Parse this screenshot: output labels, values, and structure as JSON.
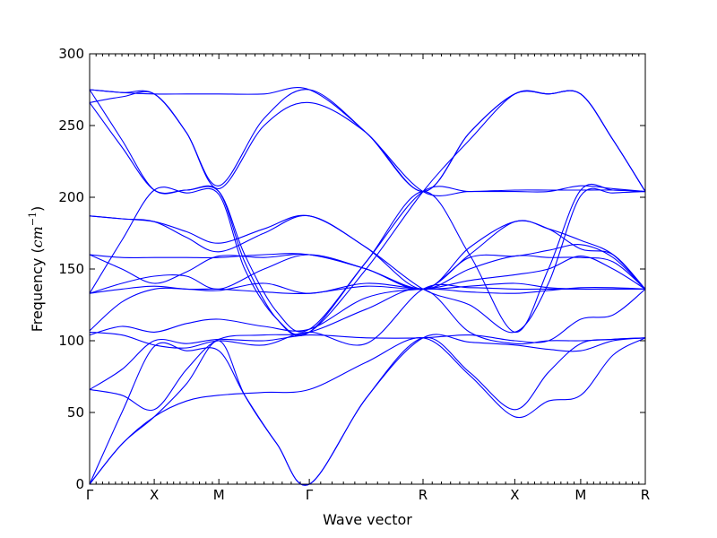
{
  "chart_data": {
    "type": "line",
    "title": "",
    "xlabel": "Wave vector",
    "ylabel": "Frequency",
    "ylabel_unit_base": "cm",
    "ylabel_unit_exp": "−1",
    "ylim": [
      0,
      300
    ],
    "yticks": [
      0,
      50,
      100,
      150,
      200,
      250,
      300
    ],
    "xlim": [
      0,
      4.3
    ],
    "high_symmetry_points": [
      {
        "label": "Γ",
        "x": 0
      },
      {
        "label": "X",
        "x": 0.5
      },
      {
        "label": "M",
        "x": 1.0
      },
      {
        "label": "Γ",
        "x": 1.7
      },
      {
        "label": "R",
        "x": 2.58
      },
      {
        "label": "X",
        "x": 3.29
      },
      {
        "label": "M",
        "x": 3.8
      },
      {
        "label": "R",
        "x": 4.3
      }
    ],
    "minor_ticks_per_segment": 9,
    "line_color": "#0000ff",
    "series": [
      {
        "values": [
          [
            0,
            0
          ],
          [
            0.25,
            28
          ],
          [
            0.5,
            47
          ],
          [
            0.75,
            58
          ],
          [
            1.0,
            62
          ],
          [
            1.35,
            64
          ],
          [
            1.7,
            66
          ],
          [
            2.14,
            85
          ],
          [
            2.58,
            102
          ],
          [
            2.94,
            76
          ],
          [
            3.29,
            47
          ],
          [
            3.55,
            58
          ],
          [
            3.8,
            62
          ],
          [
            4.05,
            90
          ],
          [
            4.3,
            102
          ]
        ]
      },
      {
        "values": [
          [
            0,
            0
          ],
          [
            0.25,
            28
          ],
          [
            0.5,
            47
          ],
          [
            0.75,
            70
          ],
          [
            1.0,
            100
          ],
          [
            1.2,
            62
          ],
          [
            1.45,
            28
          ],
          [
            1.7,
            0
          ],
          [
            2.14,
            60
          ],
          [
            2.58,
            102
          ],
          [
            2.94,
            78
          ],
          [
            3.29,
            52
          ],
          [
            3.55,
            78
          ],
          [
            3.8,
            98
          ],
          [
            4.05,
            101
          ],
          [
            4.3,
            102
          ]
        ]
      },
      {
        "values": [
          [
            0,
            0
          ],
          [
            0.25,
            50
          ],
          [
            0.5,
            96
          ],
          [
            0.75,
            93
          ],
          [
            1.0,
            93
          ],
          [
            1.2,
            62
          ],
          [
            1.45,
            28
          ],
          [
            1.7,
            0
          ],
          [
            2.14,
            60
          ],
          [
            2.58,
            102
          ],
          [
            2.94,
            99
          ],
          [
            3.29,
            97
          ],
          [
            3.55,
            94
          ],
          [
            3.8,
            93
          ],
          [
            4.05,
            100
          ],
          [
            4.3,
            102
          ]
        ]
      },
      {
        "values": [
          [
            0,
            66
          ],
          [
            0.25,
            62
          ],
          [
            0.5,
            52
          ],
          [
            0.75,
            80
          ],
          [
            1.0,
            101
          ],
          [
            1.35,
            104
          ],
          [
            1.7,
            106
          ],
          [
            2.14,
            122
          ],
          [
            2.58,
            136
          ],
          [
            2.94,
            106
          ],
          [
            3.29,
            98
          ],
          [
            3.55,
            100
          ],
          [
            3.8,
            100
          ],
          [
            4.05,
            101
          ],
          [
            4.3,
            102
          ]
        ]
      },
      {
        "values": [
          [
            0,
            66
          ],
          [
            0.25,
            80
          ],
          [
            0.5,
            100
          ],
          [
            0.75,
            98
          ],
          [
            1.0,
            101
          ],
          [
            1.35,
            100
          ],
          [
            1.7,
            104
          ],
          [
            2.14,
            102
          ],
          [
            2.58,
            102
          ],
          [
            2.94,
            104
          ],
          [
            3.29,
            100
          ],
          [
            3.55,
            100
          ],
          [
            3.8,
            115
          ],
          [
            4.05,
            118
          ],
          [
            4.3,
            136
          ]
        ]
      },
      {
        "values": [
          [
            0,
            104
          ],
          [
            0.25,
            110
          ],
          [
            0.5,
            106
          ],
          [
            0.75,
            112
          ],
          [
            1.0,
            115
          ],
          [
            1.35,
            110
          ],
          [
            1.7,
            108
          ],
          [
            2.14,
            130
          ],
          [
            2.58,
            136
          ],
          [
            2.94,
            134
          ],
          [
            3.29,
            133
          ],
          [
            3.55,
            135
          ],
          [
            3.8,
            137
          ],
          [
            4.05,
            137
          ],
          [
            4.3,
            136
          ]
        ]
      },
      {
        "values": [
          [
            0,
            106
          ],
          [
            0.25,
            104
          ],
          [
            0.5,
            97
          ],
          [
            0.75,
            95
          ],
          [
            1.0,
            100
          ],
          [
            1.35,
            97
          ],
          [
            1.7,
            106
          ],
          [
            2.14,
            98
          ],
          [
            2.58,
            136
          ],
          [
            2.94,
            137
          ],
          [
            3.29,
            136
          ],
          [
            3.55,
            136
          ],
          [
            3.8,
            136
          ],
          [
            4.05,
            136
          ],
          [
            4.3,
            136
          ]
        ]
      },
      {
        "values": [
          [
            0,
            107
          ],
          [
            0.25,
            127
          ],
          [
            0.5,
            136
          ],
          [
            0.75,
            136
          ],
          [
            1.0,
            135
          ],
          [
            1.35,
            140
          ],
          [
            1.7,
            133
          ],
          [
            2.14,
            140
          ],
          [
            2.58,
            136
          ],
          [
            2.94,
            138
          ],
          [
            3.29,
            140
          ],
          [
            3.55,
            137
          ],
          [
            3.8,
            136
          ],
          [
            4.05,
            136
          ],
          [
            4.3,
            136
          ]
        ]
      },
      {
        "values": [
          [
            0,
            133
          ],
          [
            0.25,
            136
          ],
          [
            0.5,
            138
          ],
          [
            0.75,
            136
          ],
          [
            1.0,
            136
          ],
          [
            1.35,
            134
          ],
          [
            1.7,
            133
          ],
          [
            2.14,
            138
          ],
          [
            2.58,
            136
          ],
          [
            2.94,
            142
          ],
          [
            3.29,
            146
          ],
          [
            3.55,
            150
          ],
          [
            3.8,
            159
          ],
          [
            4.05,
            150
          ],
          [
            4.3,
            136
          ]
        ]
      },
      {
        "values": [
          [
            0,
            133
          ],
          [
            0.25,
            140
          ],
          [
            0.5,
            145
          ],
          [
            0.75,
            145
          ],
          [
            1.0,
            136
          ],
          [
            1.35,
            150
          ],
          [
            1.7,
            160
          ],
          [
            2.14,
            150
          ],
          [
            2.58,
            136
          ],
          [
            2.94,
            160
          ],
          [
            3.29,
            183
          ],
          [
            3.55,
            178
          ],
          [
            3.8,
            170
          ],
          [
            4.05,
            160
          ],
          [
            4.3,
            136
          ]
        ]
      },
      {
        "values": [
          [
            0,
            160
          ],
          [
            0.25,
            158
          ],
          [
            0.5,
            158
          ],
          [
            0.75,
            158
          ],
          [
            1.0,
            158
          ],
          [
            1.35,
            160
          ],
          [
            1.7,
            160
          ],
          [
            2.14,
            150
          ],
          [
            2.58,
            136
          ],
          [
            2.94,
            150
          ],
          [
            3.29,
            159
          ],
          [
            3.55,
            158
          ],
          [
            3.8,
            158
          ],
          [
            4.05,
            155
          ],
          [
            4.3,
            136
          ]
        ]
      },
      {
        "values": [
          [
            0,
            160
          ],
          [
            0.25,
            150
          ],
          [
            0.5,
            140
          ],
          [
            0.75,
            148
          ],
          [
            1.0,
            159
          ],
          [
            1.35,
            158
          ],
          [
            1.7,
            160
          ],
          [
            2.14,
            150
          ],
          [
            2.58,
            136
          ],
          [
            2.94,
            158
          ],
          [
            3.29,
            159
          ],
          [
            3.55,
            163
          ],
          [
            3.8,
            167
          ],
          [
            4.05,
            158
          ],
          [
            4.3,
            136
          ]
        ]
      },
      {
        "values": [
          [
            0,
            187
          ],
          [
            0.25,
            185
          ],
          [
            0.5,
            183
          ],
          [
            0.75,
            176
          ],
          [
            1.0,
            168
          ],
          [
            1.35,
            178
          ],
          [
            1.7,
            187
          ],
          [
            2.14,
            165
          ],
          [
            2.58,
            136
          ],
          [
            2.94,
            165
          ],
          [
            3.29,
            183
          ],
          [
            3.55,
            178
          ],
          [
            3.8,
            164
          ],
          [
            4.05,
            160
          ],
          [
            4.3,
            136
          ]
        ]
      },
      {
        "values": [
          [
            0,
            187
          ],
          [
            0.25,
            185
          ],
          [
            0.5,
            183
          ],
          [
            0.75,
            172
          ],
          [
            1.0,
            162
          ],
          [
            1.35,
            175
          ],
          [
            1.7,
            187
          ],
          [
            2.14,
            165
          ],
          [
            2.58,
            136
          ],
          [
            2.94,
            125
          ],
          [
            3.29,
            106
          ],
          [
            3.55,
            140
          ],
          [
            3.8,
            201
          ],
          [
            4.05,
            203
          ],
          [
            4.3,
            204
          ]
        ]
      },
      {
        "values": [
          [
            0,
            275
          ],
          [
            0.25,
            240
          ],
          [
            0.5,
            205
          ],
          [
            0.75,
            205
          ],
          [
            1.0,
            204
          ],
          [
            1.2,
            160
          ],
          [
            1.45,
            120
          ],
          [
            1.7,
            108
          ],
          [
            2.14,
            155
          ],
          [
            2.58,
            204
          ],
          [
            2.94,
            204
          ],
          [
            3.29,
            205
          ],
          [
            3.55,
            205
          ],
          [
            3.8,
            205
          ],
          [
            4.05,
            205
          ],
          [
            4.3,
            204
          ]
        ]
      },
      {
        "values": [
          [
            0,
            266
          ],
          [
            0.25,
            235
          ],
          [
            0.5,
            205
          ],
          [
            0.75,
            205
          ],
          [
            1.0,
            204
          ],
          [
            1.2,
            155
          ],
          [
            1.45,
            115
          ],
          [
            1.7,
            106
          ],
          [
            2.14,
            155
          ],
          [
            2.58,
            204
          ],
          [
            2.94,
            160
          ],
          [
            3.29,
            106
          ],
          [
            3.55,
            150
          ],
          [
            3.8,
            205
          ],
          [
            4.05,
            205
          ],
          [
            4.3,
            204
          ]
        ]
      },
      {
        "values": [
          [
            0,
            133
          ],
          [
            0.25,
            170
          ],
          [
            0.5,
            205
          ],
          [
            0.75,
            203
          ],
          [
            1.0,
            202
          ],
          [
            1.2,
            150
          ],
          [
            1.45,
            115
          ],
          [
            1.7,
            106
          ],
          [
            2.14,
            150
          ],
          [
            2.58,
            204
          ],
          [
            2.94,
            240
          ],
          [
            3.29,
            272
          ],
          [
            3.55,
            272
          ],
          [
            3.8,
            272
          ],
          [
            4.05,
            240
          ],
          [
            4.3,
            204
          ]
        ]
      },
      {
        "values": [
          [
            0,
            266
          ],
          [
            0.25,
            270
          ],
          [
            0.5,
            272
          ],
          [
            0.75,
            245
          ],
          [
            1.0,
            206
          ],
          [
            1.35,
            250
          ],
          [
            1.7,
            266
          ],
          [
            2.14,
            245
          ],
          [
            2.58,
            204
          ],
          [
            2.94,
            245
          ],
          [
            3.29,
            272
          ],
          [
            3.55,
            272
          ],
          [
            3.8,
            272
          ],
          [
            4.05,
            240
          ],
          [
            4.3,
            204
          ]
        ]
      },
      {
        "values": [
          [
            0,
            275
          ],
          [
            0.25,
            273
          ],
          [
            0.5,
            272
          ],
          [
            0.75,
            272
          ],
          [
            1.0,
            272
          ],
          [
            1.35,
            272
          ],
          [
            1.7,
            275
          ],
          [
            2.14,
            245
          ],
          [
            2.58,
            204
          ],
          [
            2.94,
            245
          ],
          [
            3.29,
            272
          ],
          [
            3.55,
            272
          ],
          [
            3.8,
            272
          ],
          [
            4.05,
            240
          ],
          [
            4.3,
            204
          ]
        ]
      },
      {
        "values": [
          [
            0,
            275
          ],
          [
            0.25,
            273
          ],
          [
            0.5,
            272
          ],
          [
            0.75,
            245
          ],
          [
            1.0,
            208
          ],
          [
            1.35,
            255
          ],
          [
            1.7,
            275
          ],
          [
            2.14,
            245
          ],
          [
            2.58,
            204
          ],
          [
            2.94,
            204
          ],
          [
            3.29,
            204
          ],
          [
            3.55,
            204
          ],
          [
            3.8,
            208
          ],
          [
            4.05,
            206
          ],
          [
            4.3,
            204
          ]
        ]
      }
    ]
  }
}
